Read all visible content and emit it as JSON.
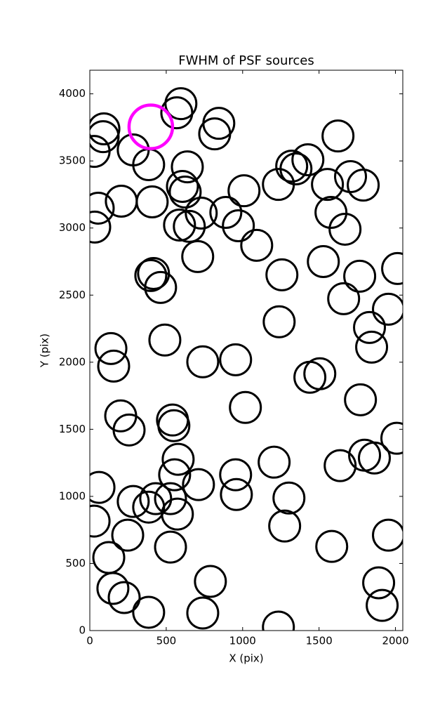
{
  "chart_data": {
    "type": "scatter",
    "title": "FWHM of PSF sources",
    "x_label": "X (pix)",
    "y_label": "Y (pix)",
    "xlim": [
      0,
      2048
    ],
    "ylim": [
      0,
      4176
    ],
    "xticks": [
      0,
      500,
      1000,
      1500,
      2000
    ],
    "yticks": [
      0,
      500,
      1000,
      1500,
      2000,
      2500,
      3000,
      3500,
      4000
    ],
    "grid": false,
    "series": [
      {
        "color": "#000000",
        "x": [
          596,
          569,
          92,
          87,
          28,
          284,
          385,
          844,
          817,
          638,
          606,
          624,
          206,
          408,
          55,
          32,
          729,
          587,
          651,
          890,
          972,
          1009,
          1092,
          706,
          399,
          417,
          463,
          1257,
          1234,
          1321,
          1349,
          1427,
          1624,
          1555,
          1578,
          1670,
          1706,
          1789,
          1528,
          1766,
          1661,
          2014,
          1954,
          1830,
          1844,
          1239,
          491,
          138,
          156,
          739,
          954,
          1440,
          1505,
          1771,
          1018,
          202,
          257,
          541,
          550,
          2009,
          578,
          1638,
          1798,
          1862,
          1206,
          954,
          959,
          1303,
          711,
          555,
          528,
          431,
          284,
          385,
          573,
          60,
          28,
          1275,
          248,
          1954,
          528,
          1583,
          124,
          151,
          225,
          385,
          789,
          739,
          1890,
          1913,
          1234
        ],
        "values": [
          3927,
          3859,
          3739,
          3681,
          3571,
          3582,
          3472,
          3780,
          3702,
          3456,
          3310,
          3268,
          3200,
          3195,
          3148,
          3007,
          3111,
          3022,
          3012,
          3116,
          3017,
          3278,
          2871,
          2787,
          2646,
          2661,
          2557,
          2651,
          3325,
          3461,
          3441,
          3509,
          3686,
          3325,
          3116,
          2991,
          3383,
          3320,
          2750,
          2641,
          2473,
          2698,
          2395,
          2259,
          2112,
          2301,
          2165,
          2102,
          1971,
          2003,
          2018,
          1888,
          1914,
          1720,
          1663,
          1600,
          1495,
          1569,
          1527,
          1433,
          1276,
          1229,
          1307,
          1286,
          1255,
          1161,
          1014,
          988,
          1088,
          1161,
          983,
          983,
          962,
          920,
          868,
          1067,
          816,
          779,
          711,
          711,
          622,
          627,
          544,
          314,
          246,
          136,
          366,
          131,
          356,
          188,
          26
        ]
      },
      {
        "color": "#ff00ff",
        "x": [
          399
        ],
        "values": [
          3754
        ]
      }
    ]
  }
}
